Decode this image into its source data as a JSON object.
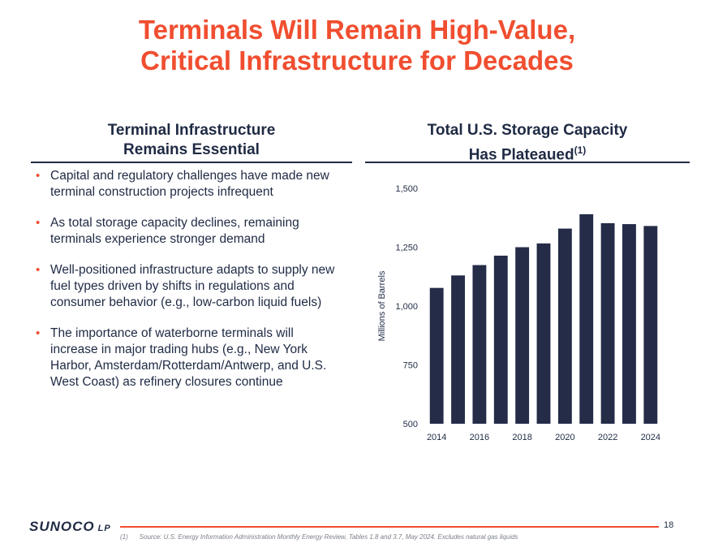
{
  "title": {
    "line1": "Terminals Will Remain High-Value,",
    "line2": "Critical Infrastructure for Decades"
  },
  "left_section": {
    "heading_line1": "Terminal Infrastructure",
    "heading_line2": "Remains Essential",
    "bullets": [
      "Capital and regulatory challenges have made new terminal construction projects infrequent",
      "As total storage capacity declines, remaining terminals experience stronger demand",
      "Well-positioned infrastructure adapts to supply new fuel types driven by shifts in regulations and consumer behavior (e.g., low-carbon liquid fuels)",
      "The importance of waterborne terminals will increase in major trading hubs (e.g., New York Harbor, Amsterdam/Rotterdam/Antwerp, and U.S. West Coast) as refinery closures continue"
    ]
  },
  "right_section": {
    "heading_line1": "Total U.S. Storage Capacity",
    "heading_line2": "Has Plateaued",
    "heading_superscript": "(1)"
  },
  "chart_data": {
    "type": "bar",
    "title": "Total U.S. Storage Capacity Has Plateaued",
    "categories": [
      "2014",
      "2015",
      "2016",
      "2017",
      "2018",
      "2019",
      "2020",
      "2021",
      "2022",
      "2023",
      "2024"
    ],
    "tick_labels": [
      "2014",
      "2016",
      "2018",
      "2020",
      "2022",
      "2024"
    ],
    "values": [
      1077,
      1130,
      1174,
      1214,
      1250,
      1266,
      1329,
      1390,
      1352,
      1348,
      1340
    ],
    "ylabel": "Millions of Barrels",
    "xlabel": "",
    "ylim": [
      500,
      1500
    ],
    "yticks": [
      500,
      750,
      1000,
      1250,
      1500
    ],
    "ytick_labels": [
      "500",
      "750",
      "1,000",
      "1,250",
      "1,500"
    ],
    "bar_color": "#242c47",
    "grid": false
  },
  "footer": {
    "logo_main": "SUNOCO",
    "logo_suffix": "LP",
    "page_number": "18",
    "footnote_marker": "(1)",
    "footnote_text": "Source: U.S. Energy Information Administration Monthly Energy Review, Tables 1.8 and 3.7, May 2024. Excludes natural gas liquids"
  },
  "colors": {
    "accent": "#f04e30",
    "navy": "#1f2a44"
  }
}
